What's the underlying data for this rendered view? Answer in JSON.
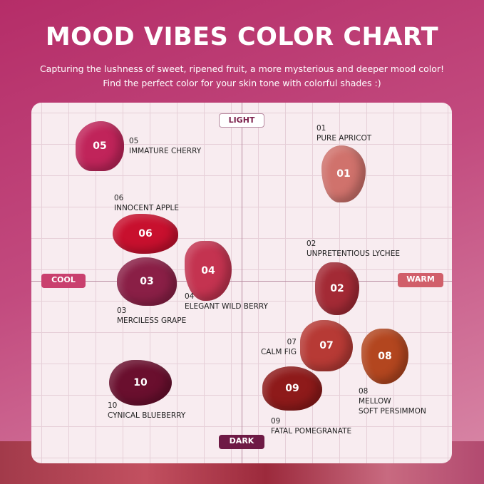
{
  "title": "MOOD VIBES COLOR CHART",
  "subtitle_lines": [
    "Capturing the lushness of sweet, ripened fruit, a more mysterious and deeper mood color!",
    "Find the perfect color for your skin tone with colorful shades :)"
  ],
  "axes": {
    "top": "LIGHT",
    "bottom": "DARK",
    "left": "COOL",
    "right": "WARM",
    "colors": {
      "top": "#ffffff",
      "bottom": "#6e1a45",
      "left": "#c9406e",
      "right": "#d15f6a"
    }
  },
  "shades": [
    {
      "num": "01",
      "name": "PURE APRICOT",
      "color": "#d0726c"
    },
    {
      "num": "02",
      "name": "UNPRETENTIOUS LYCHEE",
      "color": "#a32a35"
    },
    {
      "num": "03",
      "name": "MERCILESS GRAPE",
      "color": "#8a1f46"
    },
    {
      "num": "04",
      "name": "ELEGANT WILD BERRY",
      "color": "#c43350"
    },
    {
      "num": "05",
      "name": "IMMATURE CHERRY",
      "color": "#c0245a"
    },
    {
      "num": "06",
      "name": "INNOCENT APPLE",
      "color": "#c8102e"
    },
    {
      "num": "07",
      "name": "CALM FIG",
      "color": "#b73a35"
    },
    {
      "num": "08",
      "name": "MELLOW",
      "name2": "SOFT PERSIMMON",
      "color": "#b3461f"
    },
    {
      "num": "09",
      "name": "FATAL POMEGRANATE",
      "color": "#8e1a1a"
    },
    {
      "num": "10",
      "name": "CYNICAL BLUEBERRY",
      "color": "#6a0f2e"
    }
  ]
}
